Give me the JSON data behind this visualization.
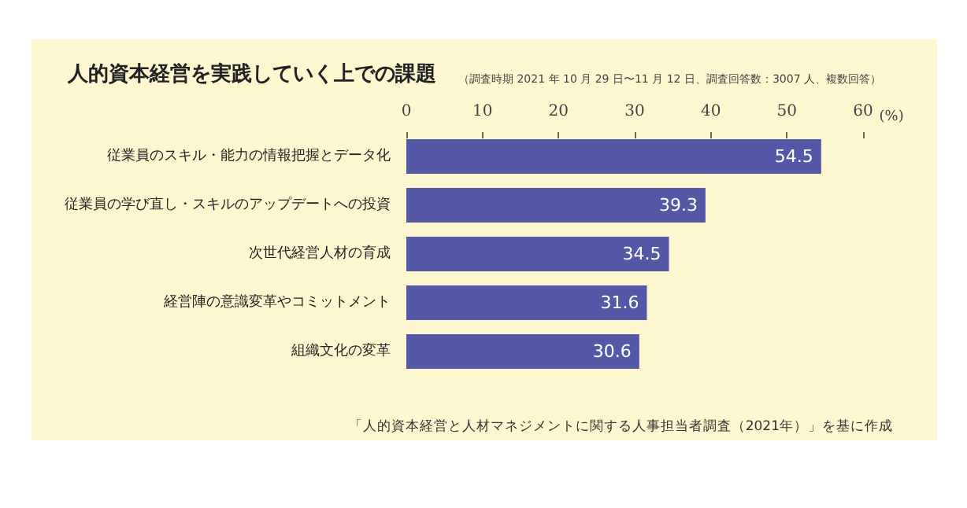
{
  "chart_data": {
    "type": "bar",
    "orientation": "horizontal",
    "title": "人的資本経営を実践していく上での課題",
    "subtitle": "（調査時期 2021 年 10 月 29 日〜11 月 12 日、調査回答数：3007 人、複数回答）",
    "xlabel": "(%)",
    "categories": [
      "従業員のスキル・能力の情報把握とデータ化",
      "従業員の学び直し・スキルのアップデートへの投資",
      "次世代経営人材の育成",
      "経営陣の意識変革やコミットメント",
      "組織文化の変革"
    ],
    "values": [
      54.5,
      39.3,
      34.5,
      31.6,
      30.6
    ],
    "color": "#5558a6",
    "data_labels": true,
    "xlim": [
      0,
      60
    ],
    "xticks": [
      0,
      10,
      20,
      30,
      40,
      50,
      60
    ],
    "grid": false,
    "annotations": [
      "「人的資本経営と人材マネジメントに関する人事担当者調査（2021年）」を基に作成"
    ]
  }
}
